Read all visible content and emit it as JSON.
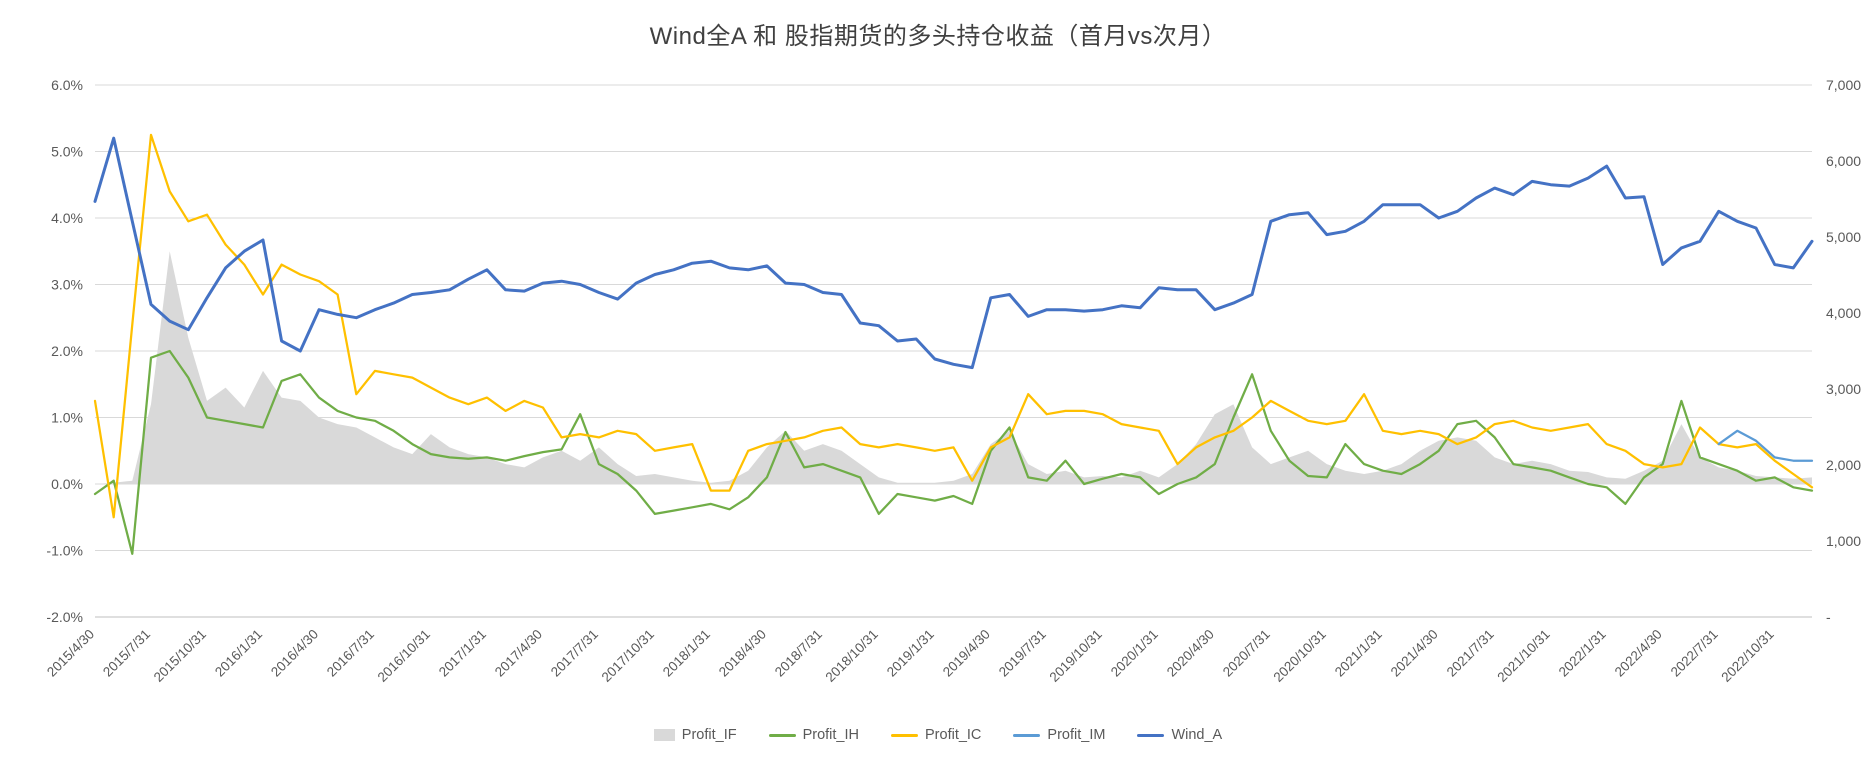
{
  "chart_data": {
    "type": "line",
    "title": "Wind全A 和 股指期货的多头持仓收益（首月vs次月）",
    "legend_position": "bottom",
    "grid": true,
    "n_points": 93,
    "tick_every": 3,
    "x_tick_labels": [
      "2015/4/30",
      "2015/7/31",
      "2015/10/31",
      "2016/1/31",
      "2016/4/30",
      "2016/7/31",
      "2016/10/31",
      "2017/1/31",
      "2017/4/30",
      "2017/7/31",
      "2017/10/31",
      "2018/1/31",
      "2018/4/30",
      "2018/7/31",
      "2018/10/31",
      "2019/1/31",
      "2019/4/30",
      "2019/7/31",
      "2019/10/31",
      "2020/1/31",
      "2020/4/30",
      "2020/7/31",
      "2020/10/31",
      "2021/1/31",
      "2021/4/30",
      "2021/7/31",
      "2021/10/31",
      "2022/1/31",
      "2022/4/30",
      "2022/7/31",
      "2022/10/31"
    ],
    "left_axis": {
      "unit": "%",
      "min": -2.0,
      "max": 6.0,
      "ticks": [
        "6.0%",
        "5.0%",
        "4.0%",
        "3.0%",
        "2.0%",
        "1.0%",
        "0.0%",
        "-1.0%",
        "-2.0%"
      ]
    },
    "right_axis": {
      "min": 0,
      "max": 7000,
      "ticks": [
        "7,000",
        "6,000",
        "5,000",
        "4,000",
        "3,000",
        "2,000",
        "1,000",
        "-"
      ]
    },
    "series": [
      {
        "name": "Profit_IF",
        "type": "area",
        "axis": "left",
        "color": "#d9d9d9",
        "width": 1,
        "values": [
          0.0,
          0.02,
          0.05,
          1.2,
          3.5,
          2.2,
          1.25,
          1.45,
          1.15,
          1.7,
          1.3,
          1.25,
          1.0,
          0.9,
          0.85,
          0.7,
          0.55,
          0.45,
          0.75,
          0.55,
          0.45,
          0.4,
          0.3,
          0.25,
          0.4,
          0.5,
          0.35,
          0.55,
          0.3,
          0.12,
          0.15,
          0.1,
          0.05,
          0.02,
          0.05,
          0.2,
          0.55,
          0.8,
          0.5,
          0.6,
          0.5,
          0.3,
          0.1,
          0.02,
          0.02,
          0.02,
          0.05,
          0.15,
          0.6,
          0.8,
          0.3,
          0.15,
          0.2,
          0.1,
          0.12,
          0.1,
          0.2,
          0.1,
          0.3,
          0.6,
          1.05,
          1.2,
          0.55,
          0.3,
          0.4,
          0.5,
          0.3,
          0.2,
          0.15,
          0.2,
          0.3,
          0.5,
          0.65,
          0.7,
          0.65,
          0.4,
          0.3,
          0.35,
          0.3,
          0.2,
          0.18,
          0.1,
          0.08,
          0.2,
          0.35,
          0.9,
          0.4,
          0.25,
          0.2,
          0.12,
          0.1,
          0.08,
          0.1
        ]
      },
      {
        "name": "Profit_IH",
        "type": "line",
        "axis": "left",
        "color": "#70ad47",
        "width": 2.25,
        "values": [
          -0.15,
          0.05,
          -1.05,
          1.9,
          2.0,
          1.6,
          1.0,
          0.95,
          0.9,
          0.85,
          1.55,
          1.65,
          1.3,
          1.1,
          1.0,
          0.95,
          0.8,
          0.6,
          0.45,
          0.4,
          0.38,
          0.4,
          0.35,
          0.42,
          0.48,
          0.52,
          1.05,
          0.3,
          0.15,
          -0.1,
          -0.45,
          -0.4,
          -0.35,
          -0.3,
          -0.38,
          -0.2,
          0.1,
          0.78,
          0.25,
          0.3,
          0.2,
          0.1,
          -0.45,
          -0.15,
          -0.2,
          -0.25,
          -0.18,
          -0.3,
          0.5,
          0.85,
          0.1,
          0.05,
          0.35,
          0.0,
          0.08,
          0.15,
          0.1,
          -0.15,
          0.0,
          0.1,
          0.3,
          1.0,
          1.65,
          0.8,
          0.35,
          0.12,
          0.1,
          0.6,
          0.3,
          0.2,
          0.15,
          0.3,
          0.5,
          0.9,
          0.95,
          0.7,
          0.3,
          0.25,
          0.2,
          0.1,
          0.0,
          -0.05,
          -0.3,
          0.1,
          0.3,
          1.25,
          0.4,
          0.3,
          0.2,
          0.05,
          0.1,
          -0.05,
          -0.1
        ]
      },
      {
        "name": "Profit_IC",
        "type": "line",
        "axis": "left",
        "color": "#ffc000",
        "width": 2.25,
        "values": [
          1.25,
          -0.5,
          2.4,
          5.25,
          4.4,
          3.95,
          4.05,
          3.6,
          3.3,
          2.85,
          3.3,
          3.15,
          3.05,
          2.85,
          1.35,
          1.7,
          1.65,
          1.6,
          1.45,
          1.3,
          1.2,
          1.3,
          1.1,
          1.25,
          1.15,
          0.7,
          0.75,
          0.7,
          0.8,
          0.75,
          0.5,
          0.55,
          0.6,
          -0.1,
          -0.1,
          0.5,
          0.6,
          0.65,
          0.7,
          0.8,
          0.85,
          0.6,
          0.55,
          0.6,
          0.55,
          0.5,
          0.55,
          0.05,
          0.55,
          0.7,
          1.35,
          1.05,
          1.1,
          1.1,
          1.05,
          0.9,
          0.85,
          0.8,
          0.3,
          0.55,
          0.7,
          0.8,
          1.0,
          1.25,
          1.1,
          0.95,
          0.9,
          0.95,
          1.35,
          0.8,
          0.75,
          0.8,
          0.75,
          0.6,
          0.7,
          0.9,
          0.95,
          0.85,
          0.8,
          0.85,
          0.9,
          0.6,
          0.5,
          0.3,
          0.25,
          0.3,
          0.85,
          0.6,
          0.55,
          0.6,
          0.35,
          0.15,
          -0.05
        ]
      },
      {
        "name": "Profit_IM",
        "type": "line",
        "axis": "left",
        "color": "#5b9bd5",
        "width": 2.25,
        "values": [
          null,
          null,
          null,
          null,
          null,
          null,
          null,
          null,
          null,
          null,
          null,
          null,
          null,
          null,
          null,
          null,
          null,
          null,
          null,
          null,
          null,
          null,
          null,
          null,
          null,
          null,
          null,
          null,
          null,
          null,
          null,
          null,
          null,
          null,
          null,
          null,
          null,
          null,
          null,
          null,
          null,
          null,
          null,
          null,
          null,
          null,
          null,
          null,
          null,
          null,
          null,
          null,
          null,
          null,
          null,
          null,
          null,
          null,
          null,
          null,
          null,
          null,
          null,
          null,
          null,
          null,
          null,
          null,
          null,
          null,
          null,
          null,
          null,
          null,
          null,
          null,
          null,
          null,
          null,
          null,
          null,
          null,
          null,
          null,
          null,
          null,
          null,
          0.6,
          0.8,
          0.65,
          0.4,
          0.35,
          0.35
        ]
      },
      {
        "name": "Wind_A",
        "type": "line",
        "axis": "right",
        "color": "#4472c4",
        "width": 3,
        "values": [
          5469,
          6300,
          5206,
          4113,
          3894,
          3780,
          4200,
          4594,
          4813,
          4961,
          3631,
          3500,
          4043,
          3981,
          3938,
          4043,
          4130,
          4244,
          4270,
          4305,
          4445,
          4568,
          4305,
          4288,
          4393,
          4419,
          4375,
          4270,
          4183,
          4393,
          4506,
          4568,
          4655,
          4681,
          4594,
          4568,
          4620,
          4393,
          4375,
          4270,
          4244,
          3868,
          3833,
          3631,
          3658,
          3395,
          3325,
          3281,
          4200,
          4244,
          3955,
          4043,
          4043,
          4025,
          4043,
          4095,
          4069,
          4331,
          4305,
          4305,
          4043,
          4130,
          4244,
          5206,
          5294,
          5320,
          5031,
          5075,
          5206,
          5425,
          5425,
          5425,
          5250,
          5338,
          5513,
          5644,
          5556,
          5731,
          5688,
          5670,
          5775,
          5933,
          5513,
          5530,
          4638,
          4856,
          4944,
          5338,
          5206,
          5119,
          4638,
          4594,
          4944
        ]
      }
    ]
  }
}
